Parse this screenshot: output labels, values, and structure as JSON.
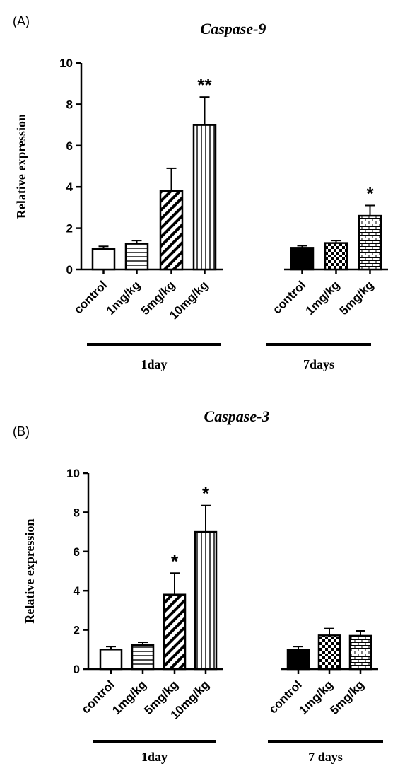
{
  "chart_data": [
    {
      "type": "bar",
      "panel_label": "(A)",
      "title": "Caspase-9",
      "ylabel": "Relative expression",
      "ylim": [
        0,
        10
      ],
      "yticks": [
        "0",
        "2",
        "4",
        "6",
        "8",
        "10"
      ],
      "groups": [
        {
          "name": "1day",
          "bars": [
            {
              "category": "control",
              "value": 1.0,
              "error": 0.12,
              "pattern": "open",
              "sig": ""
            },
            {
              "category": "1mg/kg",
              "value": 1.25,
              "error": 0.15,
              "pattern": "horizontal",
              "sig": ""
            },
            {
              "category": "5mg/kg",
              "value": 3.8,
              "error": 1.1,
              "pattern": "diagonal",
              "sig": ""
            },
            {
              "category": "10mg/kg",
              "value": 7.0,
              "error": 1.35,
              "pattern": "vertical",
              "sig": "**"
            }
          ]
        },
        {
          "name": "7days",
          "bars": [
            {
              "category": "control",
              "value": 1.05,
              "error": 0.1,
              "pattern": "solid",
              "sig": ""
            },
            {
              "category": "1mg/kg",
              "value": 1.28,
              "error": 0.12,
              "pattern": "checker",
              "sig": ""
            },
            {
              "category": "5mg/kg",
              "value": 2.6,
              "error": 0.5,
              "pattern": "brick",
              "sig": "*"
            }
          ]
        }
      ]
    },
    {
      "type": "bar",
      "panel_label": "(B)",
      "title": "Caspase-3",
      "ylabel": "Relative expression",
      "ylim": [
        0,
        10
      ],
      "yticks": [
        "0",
        "2",
        "4",
        "6",
        "8",
        "10"
      ],
      "groups": [
        {
          "name": "1day",
          "bars": [
            {
              "category": "control",
              "value": 1.0,
              "error": 0.15,
              "pattern": "open",
              "sig": ""
            },
            {
              "category": "1mg/kg",
              "value": 1.22,
              "error": 0.15,
              "pattern": "horizontal",
              "sig": ""
            },
            {
              "category": "5mg/kg",
              "value": 3.8,
              "error": 1.1,
              "pattern": "diagonal",
              "sig": "*"
            },
            {
              "category": "10mg/kg",
              "value": 7.0,
              "error": 1.35,
              "pattern": "vertical",
              "sig": "*"
            }
          ]
        },
        {
          "name": "7 days",
          "bars": [
            {
              "category": "control",
              "value": 1.0,
              "error": 0.15,
              "pattern": "solid",
              "sig": ""
            },
            {
              "category": "1mg/kg",
              "value": 1.72,
              "error": 0.35,
              "pattern": "checker",
              "sig": ""
            },
            {
              "category": "5mg/kg",
              "value": 1.7,
              "error": 0.25,
              "pattern": "brick",
              "sig": ""
            }
          ]
        }
      ]
    }
  ]
}
